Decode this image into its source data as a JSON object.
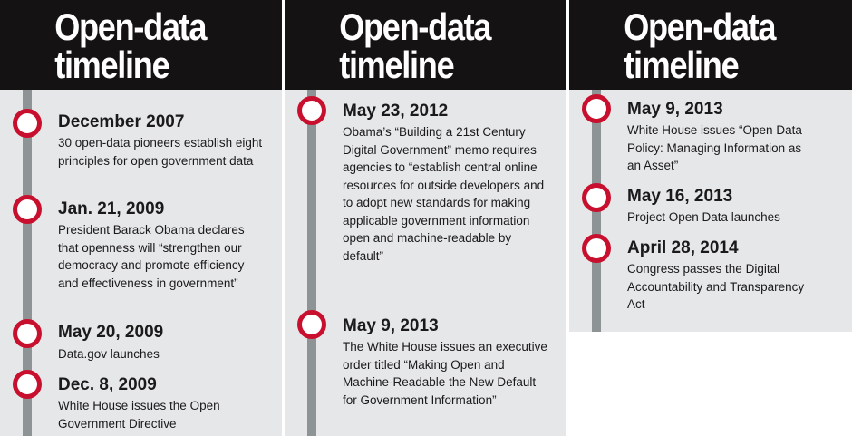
{
  "panels": [
    {
      "title_line1": "Open-data",
      "title_line2": "timeline",
      "events": [
        {
          "date": "December 2007",
          "desc": "30 open-data pioneers establish eight principles for open government data"
        },
        {
          "date": "Jan. 21, 2009",
          "desc": "President Barack Obama declares that openness will “strengthen our democracy and promote efficiency and effectiveness in government”"
        },
        {
          "date": "May 20, 2009",
          "desc": "Data.gov launches"
        },
        {
          "date": "Dec. 8, 2009",
          "desc": "White House issues the Open Government Directive"
        }
      ]
    },
    {
      "title_line1": "Open-data",
      "title_line2": "timeline",
      "events": [
        {
          "date": "May 23, 2012",
          "desc": "Obama’s “Building a 21st Century Digital Government” memo requires agencies to “establish central online resources for outside developers and to adopt new standards for making applicable government information open and machine-readable by default”"
        },
        {
          "date": "May 9, 2013",
          "desc": "The White House issues an executive order titled “Making Open and Machine-Readable the New Default for Government Information”"
        }
      ]
    },
    {
      "title_line1": "Open-data",
      "title_line2": "timeline",
      "events": [
        {
          "date": "May 9, 2013",
          "desc": "White House issues “Open Data Policy: Managing Information as an Asset”"
        },
        {
          "date": "May 16, 2013",
          "desc": "Project Open Data launches"
        },
        {
          "date": "April 28, 2014",
          "desc": "Congress passes the Digital Accountability and Transparency Act"
        }
      ]
    }
  ],
  "colors": {
    "header": "#151213",
    "panel": "#e6e7e9",
    "spine": "#8e9496",
    "marker": "#c8102e"
  }
}
